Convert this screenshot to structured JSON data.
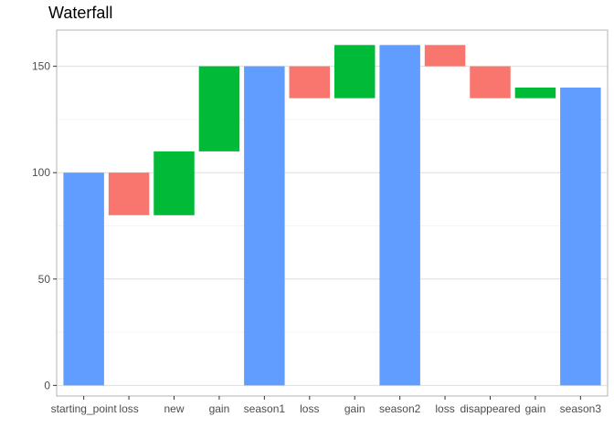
{
  "chart_data": {
    "type": "bar",
    "subtype": "waterfall",
    "title": "Waterfall",
    "xlabel": "",
    "ylabel": "",
    "ylim": [
      -5,
      167
    ],
    "yticks": [
      0,
      50,
      100,
      150
    ],
    "grid": true,
    "legend": "none",
    "colors": {
      "total": "#619CFF",
      "decrease": "#F8766D",
      "increase": "#00BA38"
    },
    "categories": [
      "starting_point",
      "loss",
      "new",
      "gain",
      "season1",
      "loss",
      "gain",
      "season2",
      "loss",
      "disappeared",
      "gain",
      "season3"
    ],
    "bars": [
      {
        "category": "starting_point",
        "kind": "total",
        "start": 0,
        "end": 100
      },
      {
        "category": "loss",
        "kind": "decrease",
        "start": 100,
        "end": 80
      },
      {
        "category": "new",
        "kind": "increase",
        "start": 80,
        "end": 110
      },
      {
        "category": "gain",
        "kind": "increase",
        "start": 110,
        "end": 150
      },
      {
        "category": "season1",
        "kind": "total",
        "start": 0,
        "end": 150
      },
      {
        "category": "loss",
        "kind": "decrease",
        "start": 150,
        "end": 135
      },
      {
        "category": "gain",
        "kind": "increase",
        "start": 135,
        "end": 160
      },
      {
        "category": "season2",
        "kind": "total",
        "start": 0,
        "end": 160
      },
      {
        "category": "loss",
        "kind": "decrease",
        "start": 160,
        "end": 150
      },
      {
        "category": "disappeared",
        "kind": "decrease",
        "start": 150,
        "end": 135
      },
      {
        "category": "gain",
        "kind": "increase",
        "start": 135,
        "end": 140
      },
      {
        "category": "season3",
        "kind": "total",
        "start": 0,
        "end": 140
      }
    ]
  }
}
